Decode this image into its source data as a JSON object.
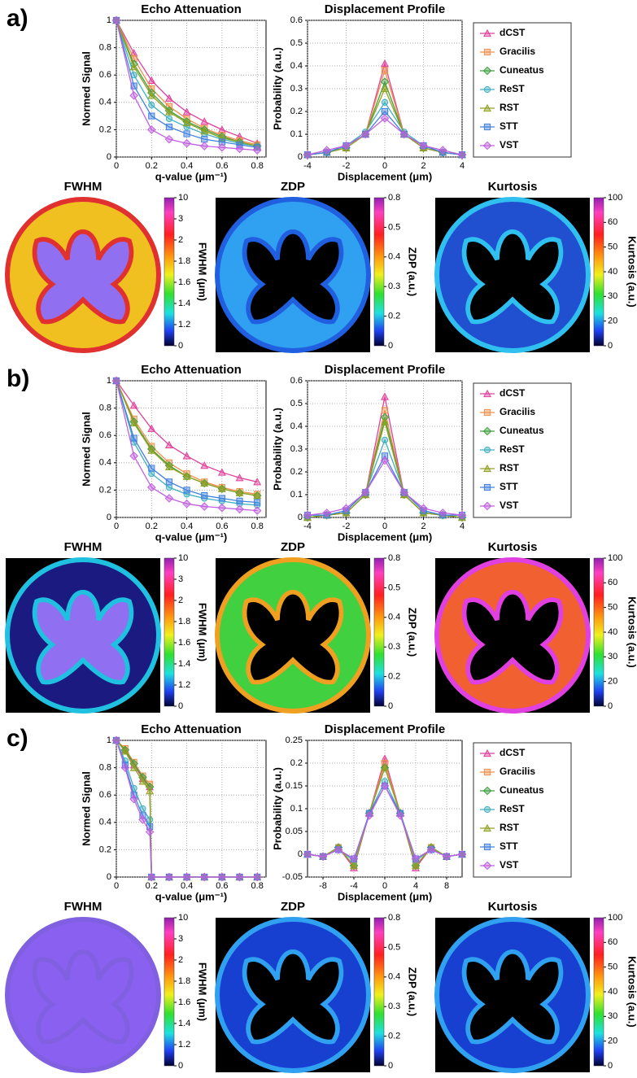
{
  "panel_labels": [
    "a)",
    "b)",
    "c)"
  ],
  "chart_data": [
    {
      "type": "line",
      "title": "Echo Attenuation",
      "xlabel": "q-value (μm⁻¹)",
      "ylabel": "Normed Signal",
      "x": [
        0,
        0.1,
        0.2,
        0.3,
        0.4,
        0.5,
        0.6,
        0.7,
        0.8
      ],
      "xlim": [
        0,
        0.85
      ],
      "xticks": [
        0,
        0.2,
        0.4,
        0.6,
        0.8
      ],
      "ylim": [
        0,
        1
      ],
      "yticks": [
        0,
        0.2,
        0.4,
        0.6,
        0.8,
        1
      ],
      "grid": true,
      "series": [
        {
          "color": "#e0409a",
          "marker": "triangle",
          "values": [
            1,
            0.76,
            0.56,
            0.43,
            0.33,
            0.26,
            0.2,
            0.15,
            0.1
          ]
        },
        {
          "color": "#f0904a",
          "marker": "square",
          "values": [
            1,
            0.72,
            0.5,
            0.37,
            0.28,
            0.21,
            0.16,
            0.12,
            0.09
          ]
        },
        {
          "color": "#40a040",
          "marker": "diamond",
          "values": [
            1,
            0.68,
            0.47,
            0.34,
            0.26,
            0.2,
            0.15,
            0.11,
            0.08
          ]
        },
        {
          "color": "#40b0c0",
          "marker": "circle",
          "values": [
            1,
            0.6,
            0.38,
            0.28,
            0.22,
            0.17,
            0.13,
            0.1,
            0.08
          ]
        },
        {
          "color": "#90a020",
          "marker": "triangle",
          "values": [
            1,
            0.66,
            0.45,
            0.33,
            0.25,
            0.19,
            0.14,
            0.11,
            0.08
          ]
        },
        {
          "color": "#4080e0",
          "marker": "square",
          "values": [
            1,
            0.52,
            0.3,
            0.22,
            0.17,
            0.13,
            0.11,
            0.09,
            0.07
          ]
        },
        {
          "color": "#c060e0",
          "marker": "diamond",
          "values": [
            1,
            0.45,
            0.2,
            0.13,
            0.1,
            0.08,
            0.07,
            0.06,
            0.05
          ]
        }
      ]
    },
    {
      "type": "line",
      "title": "Displacement Profile",
      "xlabel": "Displacement (μm)",
      "ylabel": "Probability (a.u.)",
      "x": [
        -4,
        -3,
        -2,
        -1,
        0,
        1,
        2,
        3,
        4
      ],
      "xlim": [
        -4,
        4
      ],
      "xticks": [
        -4,
        -2,
        0,
        2,
        4
      ],
      "ylim": [
        0,
        0.6
      ],
      "yticks": [
        0,
        0.1,
        0.2,
        0.3,
        0.4,
        0.5,
        0.6
      ],
      "grid": true,
      "legend": "right",
      "series": [
        {
          "name": "dCST",
          "color": "#e0409a",
          "marker": "triangle",
          "values": [
            0.01,
            0.02,
            0.04,
            0.1,
            0.41,
            0.1,
            0.04,
            0.02,
            0.01
          ]
        },
        {
          "name": "Gracilis",
          "color": "#f0904a",
          "marker": "square",
          "values": [
            0.01,
            0.02,
            0.04,
            0.1,
            0.38,
            0.1,
            0.04,
            0.02,
            0.01
          ]
        },
        {
          "name": "Cuneatus",
          "color": "#40a040",
          "marker": "diamond",
          "values": [
            0.01,
            0.02,
            0.04,
            0.1,
            0.33,
            0.1,
            0.04,
            0.02,
            0.01
          ]
        },
        {
          "name": "ReST",
          "color": "#40b0c0",
          "marker": "circle",
          "values": [
            0.01,
            0.02,
            0.05,
            0.11,
            0.24,
            0.11,
            0.05,
            0.02,
            0.01
          ]
        },
        {
          "name": "RST",
          "color": "#90a020",
          "marker": "triangle",
          "values": [
            0.01,
            0.02,
            0.04,
            0.1,
            0.3,
            0.1,
            0.04,
            0.02,
            0.01
          ]
        },
        {
          "name": "STT",
          "color": "#4080e0",
          "marker": "square",
          "values": [
            0.01,
            0.02,
            0.05,
            0.1,
            0.2,
            0.1,
            0.05,
            0.02,
            0.01
          ]
        },
        {
          "name": "VST",
          "color": "#c060e0",
          "marker": "diamond",
          "values": [
            0.01,
            0.03,
            0.05,
            0.1,
            0.17,
            0.1,
            0.05,
            0.03,
            0.01
          ]
        }
      ]
    },
    {
      "type": "line",
      "title": "Echo Attenuation",
      "xlabel": "q-value (μm⁻¹)",
      "ylabel": "Normed Signal",
      "x": [
        0,
        0.1,
        0.2,
        0.3,
        0.4,
        0.5,
        0.6,
        0.7,
        0.8
      ],
      "xlim": [
        0,
        0.85
      ],
      "xticks": [
        0,
        0.2,
        0.4,
        0.6,
        0.8
      ],
      "ylim": [
        0,
        1
      ],
      "yticks": [
        0,
        0.2,
        0.4,
        0.6,
        0.8,
        1
      ],
      "grid": true,
      "series": [
        {
          "color": "#e0409a",
          "marker": "triangle",
          "values": [
            1,
            0.82,
            0.65,
            0.53,
            0.45,
            0.38,
            0.33,
            0.29,
            0.26
          ]
        },
        {
          "color": "#f0904a",
          "marker": "square",
          "values": [
            1,
            0.72,
            0.52,
            0.4,
            0.32,
            0.26,
            0.22,
            0.19,
            0.17
          ]
        },
        {
          "color": "#40a040",
          "marker": "diamond",
          "values": [
            1,
            0.7,
            0.5,
            0.38,
            0.3,
            0.25,
            0.21,
            0.18,
            0.16
          ]
        },
        {
          "color": "#40b0c0",
          "marker": "circle",
          "values": [
            1,
            0.55,
            0.32,
            0.22,
            0.17,
            0.14,
            0.12,
            0.1,
            0.09
          ]
        },
        {
          "color": "#90a020",
          "marker": "triangle",
          "values": [
            1,
            0.69,
            0.49,
            0.37,
            0.3,
            0.25,
            0.21,
            0.18,
            0.16
          ]
        },
        {
          "color": "#4080e0",
          "marker": "square",
          "values": [
            1,
            0.58,
            0.36,
            0.26,
            0.2,
            0.16,
            0.14,
            0.12,
            0.11
          ]
        },
        {
          "color": "#c060e0",
          "marker": "diamond",
          "values": [
            1,
            0.45,
            0.22,
            0.14,
            0.1,
            0.08,
            0.07,
            0.06,
            0.05
          ]
        }
      ]
    },
    {
      "type": "line",
      "title": "Displacement Profile",
      "xlabel": "Displacement (μm)",
      "ylabel": "Probability (a.u.)",
      "x": [
        -4,
        -3,
        -2,
        -1,
        0,
        1,
        2,
        3,
        4
      ],
      "xlim": [
        -4,
        4
      ],
      "xticks": [
        -4,
        -2,
        0,
        2,
        4
      ],
      "ylim": [
        0,
        0.6
      ],
      "yticks": [
        0,
        0.1,
        0.2,
        0.3,
        0.4,
        0.5,
        0.6
      ],
      "grid": true,
      "legend": "right",
      "series": [
        {
          "name": "dCST",
          "color": "#e0409a",
          "marker": "triangle",
          "values": [
            0,
            0.01,
            0.02,
            0.1,
            0.53,
            0.1,
            0.02,
            0.01,
            0
          ]
        },
        {
          "name": "Gracilis",
          "color": "#f0904a",
          "marker": "square",
          "values": [
            0,
            0.01,
            0.02,
            0.1,
            0.47,
            0.1,
            0.02,
            0.01,
            0
          ]
        },
        {
          "name": "Cuneatus",
          "color": "#40a040",
          "marker": "diamond",
          "values": [
            0,
            0.01,
            0.02,
            0.1,
            0.44,
            0.1,
            0.02,
            0.01,
            0
          ]
        },
        {
          "name": "ReST",
          "color": "#40b0c0",
          "marker": "circle",
          "values": [
            0,
            0.01,
            0.03,
            0.11,
            0.34,
            0.11,
            0.03,
            0.01,
            0
          ]
        },
        {
          "name": "RST",
          "color": "#90a020",
          "marker": "triangle",
          "values": [
            0,
            0.01,
            0.02,
            0.1,
            0.42,
            0.1,
            0.02,
            0.01,
            0
          ]
        },
        {
          "name": "STT",
          "color": "#4080e0",
          "marker": "square",
          "values": [
            0.01,
            0.01,
            0.03,
            0.11,
            0.27,
            0.11,
            0.03,
            0.01,
            0.01
          ]
        },
        {
          "name": "VST",
          "color": "#c060e0",
          "marker": "diamond",
          "values": [
            0.01,
            0.02,
            0.04,
            0.11,
            0.25,
            0.11,
            0.04,
            0.02,
            0.01
          ]
        }
      ]
    },
    {
      "type": "line",
      "title": "Echo Attenuation",
      "xlabel": "q-value (μm⁻¹)",
      "ylabel": "Normed Signal",
      "x": [
        0,
        0.05,
        0.1,
        0.15,
        0.19,
        0.2,
        0.3,
        0.4,
        0.5,
        0.6,
        0.7,
        0.8
      ],
      "xlim": [
        0,
        0.85
      ],
      "xticks": [
        0,
        0.2,
        0.4,
        0.6,
        0.8
      ],
      "ylim": [
        0,
        1
      ],
      "yticks": [
        0,
        0.2,
        0.4,
        0.6,
        0.8,
        1
      ],
      "grid": true,
      "series": [
        {
          "color": "#e0409a",
          "marker": "triangle",
          "values": [
            1,
            0.93,
            0.82,
            0.72,
            0.66,
            0,
            0,
            0,
            0,
            0,
            0,
            0
          ]
        },
        {
          "color": "#f0904a",
          "marker": "square",
          "values": [
            1,
            0.94,
            0.84,
            0.74,
            0.68,
            0,
            0,
            0,
            0,
            0,
            0,
            0
          ]
        },
        {
          "color": "#40a040",
          "marker": "diamond",
          "values": [
            1,
            0.93,
            0.83,
            0.73,
            0.66,
            0,
            0,
            0,
            0,
            0,
            0,
            0
          ]
        },
        {
          "color": "#40b0c0",
          "marker": "circle",
          "values": [
            1,
            0.85,
            0.65,
            0.5,
            0.42,
            0,
            0,
            0,
            0,
            0,
            0,
            0
          ]
        },
        {
          "color": "#90a020",
          "marker": "triangle",
          "values": [
            1,
            0.92,
            0.8,
            0.7,
            0.63,
            0,
            0,
            0,
            0,
            0,
            0,
            0
          ]
        },
        {
          "color": "#4080e0",
          "marker": "square",
          "values": [
            1,
            0.82,
            0.6,
            0.45,
            0.37,
            0,
            0,
            0,
            0,
            0,
            0,
            0
          ]
        },
        {
          "color": "#c060e0",
          "marker": "diamond",
          "values": [
            1,
            0.8,
            0.57,
            0.42,
            0.33,
            0,
            0,
            0,
            0,
            0,
            0,
            0
          ]
        }
      ]
    },
    {
      "type": "line",
      "title": "Displacement Profile",
      "xlabel": "Displacement (μm)",
      "ylabel": "Probability (a.u.)",
      "x": [
        -10,
        -8,
        -6,
        -4,
        -2,
        0,
        2,
        4,
        6,
        8,
        10
      ],
      "xlim": [
        -10,
        10
      ],
      "xticks": [
        -8,
        -4,
        0,
        4,
        8
      ],
      "ylim": [
        -0.05,
        0.25
      ],
      "yticks": [
        -0.05,
        0,
        0.05,
        0.1,
        0.15,
        0.2,
        0.25
      ],
      "grid": true,
      "legend": "right",
      "series": [
        {
          "name": "dCST",
          "color": "#e0409a",
          "marker": "triangle",
          "values": [
            0,
            -0.005,
            0.015,
            -0.03,
            0.09,
            0.21,
            0.09,
            -0.03,
            0.015,
            -0.005,
            0
          ]
        },
        {
          "name": "Gracilis",
          "color": "#f0904a",
          "marker": "square",
          "values": [
            0,
            -0.005,
            0.015,
            -0.025,
            0.09,
            0.2,
            0.09,
            -0.025,
            0.015,
            -0.005,
            0
          ]
        },
        {
          "name": "Cuneatus",
          "color": "#40a040",
          "marker": "diamond",
          "values": [
            0,
            -0.005,
            0.015,
            -0.025,
            0.09,
            0.19,
            0.09,
            -0.025,
            0.015,
            -0.005,
            0
          ]
        },
        {
          "name": "ReST",
          "color": "#40b0c0",
          "marker": "circle",
          "values": [
            0,
            -0.005,
            0.012,
            -0.015,
            0.09,
            0.16,
            0.09,
            -0.015,
            0.012,
            -0.005,
            0
          ]
        },
        {
          "name": "RST",
          "color": "#90a020",
          "marker": "triangle",
          "values": [
            0,
            -0.005,
            0.015,
            -0.025,
            0.09,
            0.19,
            0.09,
            -0.025,
            0.015,
            -0.005,
            0
          ]
        },
        {
          "name": "STT",
          "color": "#4080e0",
          "marker": "square",
          "values": [
            0,
            -0.005,
            0.01,
            -0.01,
            0.09,
            0.15,
            0.09,
            -0.01,
            0.01,
            -0.005,
            0
          ]
        },
        {
          "name": "VST",
          "color": "#c060e0",
          "marker": "diamond",
          "values": [
            0,
            -0.005,
            0.01,
            -0.01,
            0.085,
            0.15,
            0.085,
            -0.01,
            0.01,
            -0.005,
            0
          ]
        }
      ]
    }
  ],
  "maps": [
    {
      "title": "FWHM",
      "colorbar_label": "FWHM (μm)",
      "colorbar_ticks": [
        10,
        3,
        2,
        1.8,
        1.6,
        1.4,
        1.2,
        0
      ]
    },
    {
      "title": "ZDP",
      "colorbar_label": "ZDP (a.u.)",
      "colorbar_ticks": [
        0.8,
        0.5,
        0.4,
        0.3,
        0.2,
        0
      ]
    },
    {
      "title": "Kurtosis",
      "colorbar_label": "Kurtosis (a.u.)",
      "colorbar_ticks": [
        100,
        60,
        50,
        40,
        30,
        20,
        0
      ]
    },
    {
      "title": "FWHM",
      "colorbar_label": "FWHM (μm)",
      "colorbar_ticks": [
        10,
        3,
        2,
        1.8,
        1.6,
        1.4,
        1.2,
        0
      ]
    },
    {
      "title": "ZDP",
      "colorbar_label": "ZDP (a.u.)",
      "colorbar_ticks": [
        0.8,
        0.5,
        0.4,
        0.3,
        0.2,
        0
      ]
    },
    {
      "title": "Kurtosis",
      "colorbar_label": "Kurtosis (a.u.)",
      "colorbar_ticks": [
        100,
        60,
        50,
        40,
        30,
        20,
        0
      ]
    },
    {
      "title": "FWHM",
      "colorbar_label": "FWHM (μm)",
      "colorbar_ticks": [
        10,
        3,
        2,
        1.8,
        1.6,
        1.4,
        1.2,
        0
      ]
    },
    {
      "title": "ZDP",
      "colorbar_label": "ZDP (a.u.)",
      "colorbar_ticks": [
        0.8,
        0.5,
        0.4,
        0.3,
        0.2,
        0
      ]
    },
    {
      "title": "Kurtosis",
      "colorbar_label": "Kurtosis (a.u.)",
      "colorbar_ticks": [
        100,
        60,
        50,
        40,
        30,
        20,
        0
      ]
    }
  ]
}
